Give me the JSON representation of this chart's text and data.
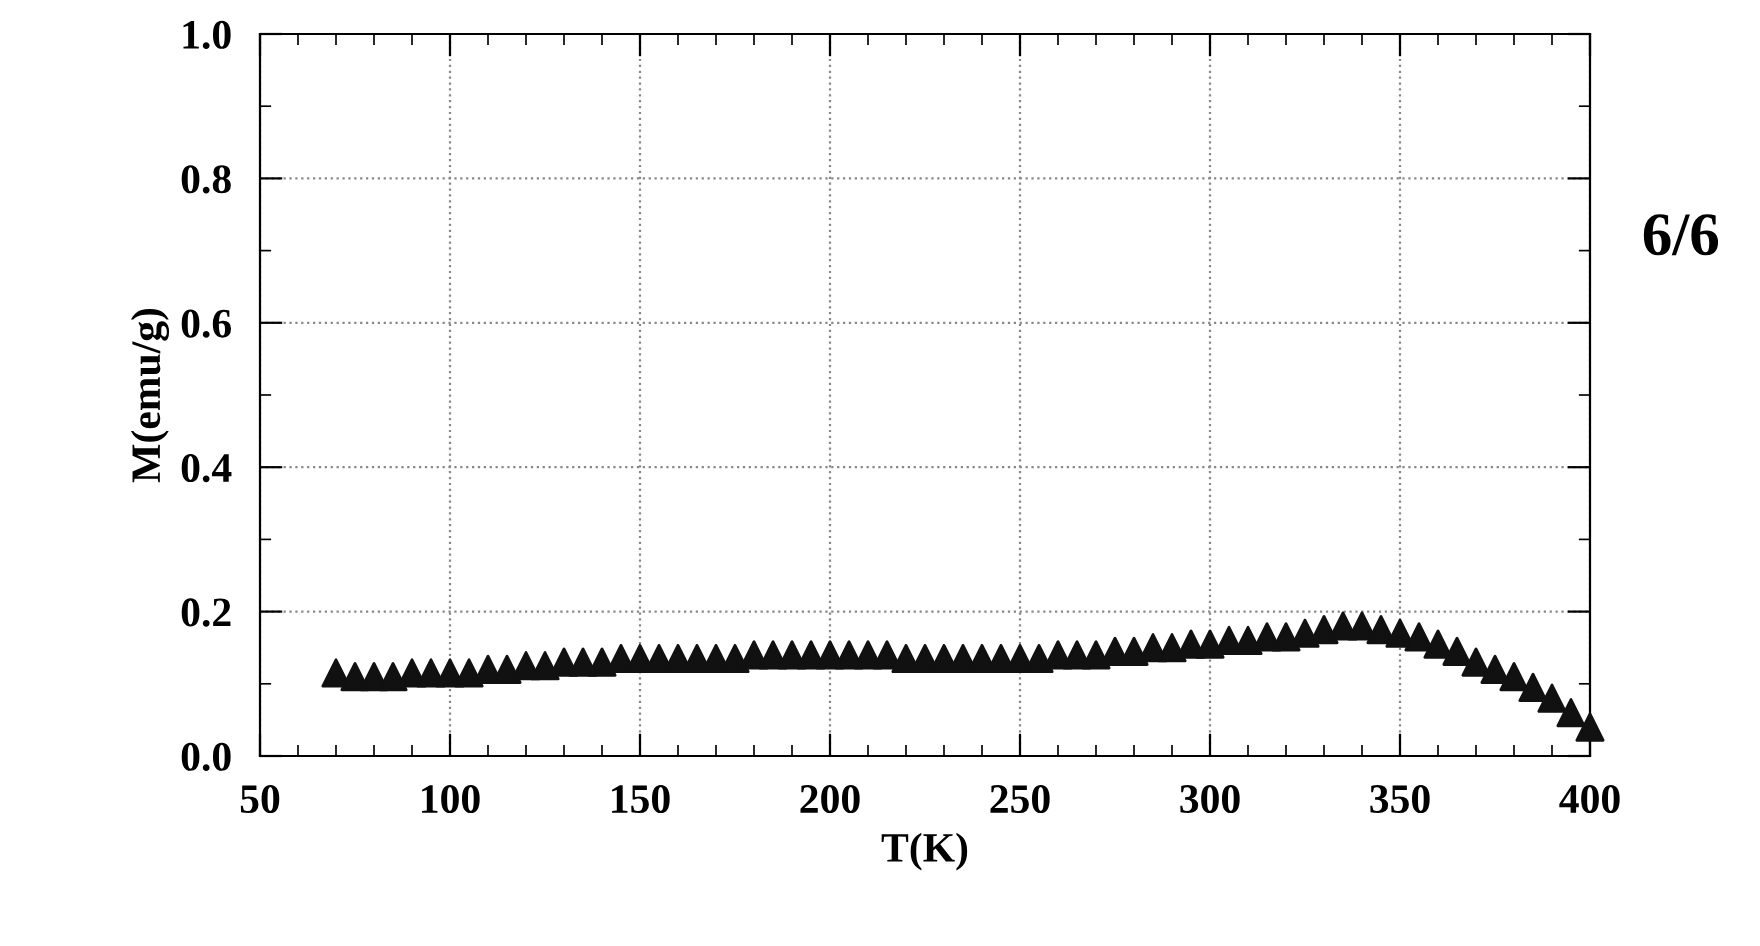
{
  "chart_data": {
    "type": "scatter",
    "xlabel": "T(K)",
    "ylabel": "M(emu/g)",
    "annotations": [
      "6/6"
    ],
    "xlim": [
      50,
      400
    ],
    "ylim": [
      0.0,
      1.0
    ],
    "xticks": [
      50,
      100,
      150,
      200,
      250,
      300,
      350,
      400
    ],
    "yticks": [
      {
        "value": 0,
        "label": "0.0"
      },
      0.2,
      0.4,
      0.6,
      0.8,
      {
        "value": 1,
        "label": "1.0"
      }
    ],
    "grid": true,
    "marker": "triangle",
    "series": [
      {
        "color": "#111111",
        "x": [
          70,
          75,
          80,
          85,
          90,
          95,
          100,
          105,
          110,
          115,
          120,
          125,
          130,
          135,
          140,
          145,
          150,
          155,
          160,
          165,
          170,
          175,
          180,
          185,
          190,
          195,
          200,
          205,
          210,
          215,
          220,
          225,
          230,
          235,
          240,
          245,
          250,
          255,
          260,
          265,
          270,
          275,
          280,
          285,
          290,
          295,
          300,
          305,
          310,
          315,
          320,
          325,
          330,
          335,
          340,
          345,
          350,
          355,
          360,
          365,
          370,
          375,
          380,
          385,
          390,
          395,
          400
        ],
        "values": [
          0.115,
          0.11,
          0.11,
          0.11,
          0.115,
          0.115,
          0.115,
          0.115,
          0.12,
          0.12,
          0.125,
          0.125,
          0.13,
          0.13,
          0.13,
          0.135,
          0.135,
          0.135,
          0.135,
          0.135,
          0.135,
          0.135,
          0.14,
          0.14,
          0.14,
          0.14,
          0.14,
          0.14,
          0.14,
          0.14,
          0.135,
          0.135,
          0.135,
          0.135,
          0.135,
          0.135,
          0.135,
          0.135,
          0.14,
          0.14,
          0.14,
          0.145,
          0.145,
          0.15,
          0.15,
          0.155,
          0.155,
          0.16,
          0.16,
          0.165,
          0.165,
          0.17,
          0.175,
          0.18,
          0.18,
          0.175,
          0.17,
          0.165,
          0.155,
          0.145,
          0.13,
          0.12,
          0.11,
          0.095,
          0.08,
          0.06,
          0.04
        ]
      }
    ]
  }
}
